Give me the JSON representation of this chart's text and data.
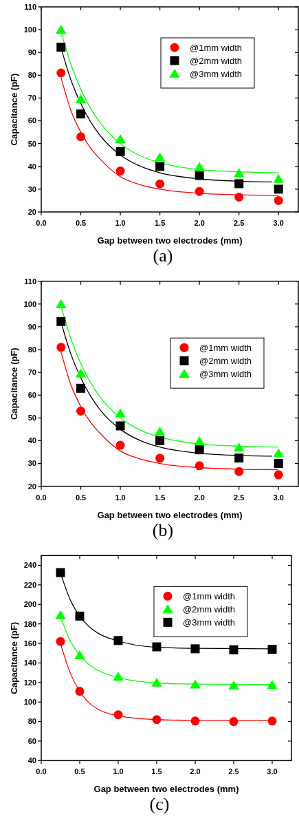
{
  "chart_data": [
    {
      "type": "scatter",
      "xlabel": "Gap between two electrodes (mm)",
      "ylabel": "Capacitance (pF)",
      "annotations": [
        "(a)"
      ],
      "xlim": [
        0,
        3.25
      ],
      "xticks": [
        {
          "value": 0,
          "label": "0.0"
        },
        0.5,
        {
          "value": 1,
          "label": "1.0"
        },
        1.5,
        {
          "value": 2,
          "label": "2.0"
        },
        2.5,
        {
          "value": 3,
          "label": "3.0"
        }
      ],
      "ylim": [
        20,
        110
      ],
      "yticks": [
        20,
        30,
        40,
        50,
        60,
        70,
        80,
        90,
        100,
        110
      ],
      "grid": false,
      "legend": "top right",
      "x": [
        0.25,
        0.5,
        1,
        1.5,
        2,
        2.5,
        3
      ],
      "series": [
        {
          "name": "@1mm width",
          "color": "#ff0000",
          "marker": "circle",
          "values": [
            81,
            53,
            38,
            32.3,
            29,
            26.5,
            25
          ]
        },
        {
          "name": "@2mm width",
          "color": "#000000",
          "marker": "square",
          "values": [
            92.3,
            63,
            46.5,
            40,
            36,
            32.4,
            30
          ]
        },
        {
          "name": "@3mm width",
          "color": "#00ff00",
          "marker": "triangle",
          "values": [
            100,
            69.5,
            52,
            44,
            39.8,
            37,
            34.5
          ]
        },
        {
          "type": "line",
          "color": "#ff0000",
          "line_style": "solid",
          "x": [
            0.25,
            0.375,
            0.5,
            0.625,
            0.75,
            1,
            1.25,
            1.5,
            2,
            2.5,
            3
          ],
          "values": [
            79,
            64.5,
            55,
            48,
            43,
            35.5,
            32,
            30,
            28.2,
            27.5,
            27.3
          ]
        },
        {
          "type": "line",
          "color": "#000000",
          "line_style": "solid",
          "x": [
            0.25,
            0.375,
            0.5,
            0.625,
            0.75,
            1,
            1.25,
            1.5,
            2,
            2.5,
            2.92
          ],
          "values": [
            92,
            78,
            67.6,
            59.5,
            53.3,
            45,
            40.1,
            37.2,
            34.5,
            33.5,
            33.2
          ]
        },
        {
          "type": "line",
          "color": "#00ff00",
          "line_style": "solid",
          "x": [
            0.25,
            0.375,
            0.5,
            0.625,
            0.75,
            1,
            1.25,
            1.5,
            2,
            2.5,
            3
          ],
          "values": [
            99,
            84.8,
            73.9,
            65.4,
            58.9,
            50,
            44.7,
            41.6,
            38.6,
            37.6,
            37.2
          ]
        }
      ]
    },
    {
      "type": "scatter",
      "xlabel": "Gap between two electrodes (mm)",
      "ylabel": "Capacitance (pF)",
      "annotations": [
        "(b)"
      ],
      "xlim": [
        0,
        3.25
      ],
      "xticks": [
        {
          "value": 0,
          "label": "0.0"
        },
        0.5,
        {
          "value": 1,
          "label": "1.0"
        },
        1.5,
        {
          "value": 2,
          "label": "2.0"
        },
        2.5,
        {
          "value": 3,
          "label": "3.0"
        }
      ],
      "ylim": [
        20,
        110
      ],
      "yticks": [
        20,
        30,
        40,
        50,
        60,
        70,
        80,
        90,
        100,
        110
      ],
      "grid": false,
      "legend": "right",
      "x": [
        0.25,
        0.5,
        1,
        1.5,
        2,
        2.5,
        3
      ],
      "series": [
        {
          "name": "@1mm width",
          "color": "#ff0000",
          "marker": "circle",
          "values": [
            81,
            53,
            38,
            32.3,
            29,
            26.5,
            25
          ]
        },
        {
          "name": "@2mm width",
          "color": "#000000",
          "marker": "square",
          "values": [
            92.3,
            63,
            46.5,
            40,
            36,
            32.4,
            30
          ]
        },
        {
          "name": "@3mm width",
          "color": "#00ff00",
          "marker": "triangle",
          "values": [
            100,
            69.5,
            52,
            44,
            39.8,
            37,
            34.5
          ]
        },
        {
          "type": "line",
          "color": "#ff0000",
          "line_style": "solid",
          "x": [
            0.25,
            0.375,
            0.5,
            0.625,
            0.75,
            1,
            1.25,
            1.5,
            2,
            2.5,
            3
          ],
          "values": [
            79,
            64.5,
            55,
            48,
            43,
            35.5,
            32,
            30,
            28.2,
            27.5,
            27.3
          ]
        },
        {
          "type": "line",
          "color": "#000000",
          "line_style": "solid",
          "x": [
            0.25,
            0.375,
            0.5,
            0.625,
            0.75,
            1,
            1.25,
            1.5,
            2,
            2.5,
            2.92
          ],
          "values": [
            92,
            78,
            67.6,
            59.5,
            53.3,
            45,
            40.1,
            37.2,
            34.5,
            33.5,
            33.2
          ]
        },
        {
          "type": "line",
          "color": "#00ff00",
          "line_style": "solid",
          "x": [
            0.25,
            0.375,
            0.5,
            0.625,
            0.75,
            1,
            1.25,
            1.5,
            2,
            2.5,
            3
          ],
          "values": [
            99,
            84.8,
            73.9,
            65.4,
            58.9,
            50,
            44.7,
            41.6,
            38.6,
            37.6,
            37.2
          ]
        }
      ]
    },
    {
      "type": "scatter",
      "xlabel": "Gap between two electrodes (mm)",
      "ylabel": "Capacitance (pF)",
      "annotations": [
        "(c)"
      ],
      "xlim": [
        0,
        3.25
      ],
      "xticks": [
        {
          "value": 0,
          "label": "0.0"
        },
        0.5,
        {
          "value": 1,
          "label": "1.0"
        },
        1.5,
        {
          "value": 2,
          "label": "2.0"
        },
        2.5,
        {
          "value": 3,
          "label": "3.0"
        }
      ],
      "ylim": [
        40,
        250
      ],
      "yticks": [
        40,
        60,
        80,
        100,
        120,
        140,
        160,
        180,
        200,
        220,
        240
      ],
      "grid": false,
      "legend": "top right",
      "x": [
        0.25,
        0.5,
        1,
        1.5,
        2,
        2.5,
        3
      ],
      "series": [
        {
          "name": "@1mm width",
          "color": "#ff0000",
          "marker": "circle",
          "values": [
            162,
            111,
            87,
            82,
            80.5,
            80,
            80.5
          ]
        },
        {
          "name": "@2mm width",
          "color": "#00ff00",
          "marker": "triangle",
          "values": [
            189,
            148,
            126,
            120,
            118,
            117,
            117.5
          ]
        },
        {
          "name": "@3mm width",
          "color": "#000000",
          "marker": "square",
          "values": [
            232.5,
            188,
            163,
            156.5,
            154.5,
            153.5,
            154
          ]
        },
        {
          "type": "line",
          "color": "#ff0000",
          "line_style": "solid",
          "x": [
            0.25,
            0.375,
            0.5,
            0.625,
            0.75,
            1,
            1.5,
            2,
            3
          ],
          "values": [
            160,
            130,
            111,
            99,
            92,
            86,
            82,
            81.2,
            81
          ]
        },
        {
          "type": "line",
          "color": "#00ff00",
          "line_style": "solid",
          "x": [
            0.25,
            0.375,
            0.5,
            0.625,
            0.75,
            1,
            1.5,
            2,
            3
          ],
          "values": [
            188,
            163,
            148,
            138,
            132,
            125,
            119.5,
            118.3,
            118
          ]
        },
        {
          "type": "line",
          "color": "#000000",
          "line_style": "solid",
          "x": [
            0.25,
            0.375,
            0.5,
            0.625,
            0.75,
            1,
            1.5,
            2,
            3
          ],
          "values": [
            232,
            205,
            188,
            177,
            170,
            162.5,
            156,
            155,
            154.5
          ]
        }
      ]
    }
  ]
}
